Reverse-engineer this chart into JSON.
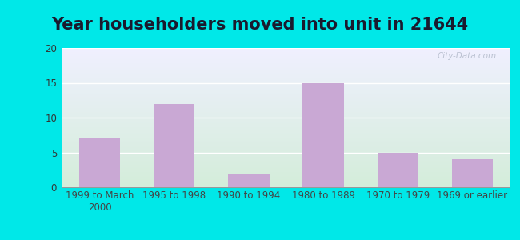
{
  "title": "Year householders moved into unit in 21644",
  "categories": [
    "1999 to March\n2000",
    "1995 to 1998",
    "1990 to 1994",
    "1980 to 1989",
    "1970 to 1979",
    "1969 or earlier"
  ],
  "values": [
    7,
    12,
    2,
    15,
    5,
    4
  ],
  "bar_color": "#c9a8d4",
  "ylim": [
    0,
    20
  ],
  "yticks": [
    0,
    5,
    10,
    15,
    20
  ],
  "background_outer": "#00e8e8",
  "background_top": "#f0f0ff",
  "background_bottom": "#d4edda",
  "grid_color": "#e8e8e8",
  "title_fontsize": 15,
  "tick_fontsize": 8.5,
  "watermark": "City-Data.com",
  "ytick_color": "#333333",
  "xtick_color": "#444444"
}
